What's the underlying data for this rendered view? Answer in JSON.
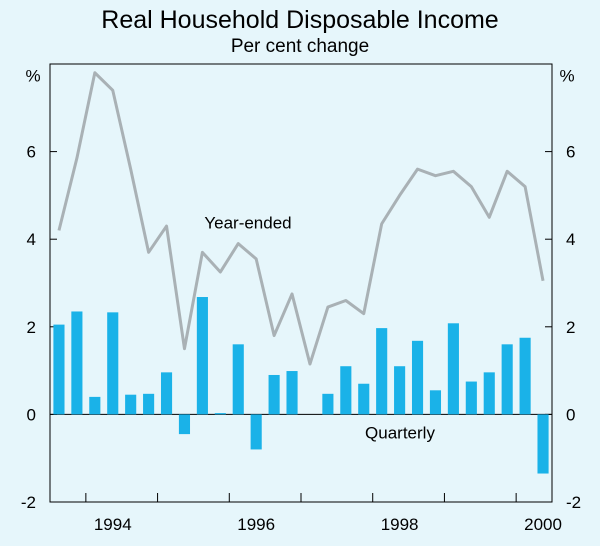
{
  "chart_data": {
    "type": "bar+line",
    "title": "Real Household Disposable Income",
    "subtitle": "Per cent change",
    "ylabel_left": "%",
    "ylabel_right": "%",
    "ylim": [
      -2,
      8
    ],
    "yticks": [
      -2,
      0,
      2,
      4,
      6
    ],
    "xtick_labels": [
      "1994",
      "1996",
      "1998",
      "2000"
    ],
    "xtick_positions": [
      3.5,
      11.5,
      19.5,
      27.5
    ],
    "annotations": {
      "line": "Year-ended",
      "bars": "Quarterly"
    },
    "colors": {
      "background": "#e6f6fb",
      "bars": "#1ab2e8",
      "line": "#a9b1b5",
      "axis": "#000000"
    },
    "series": [
      {
        "name": "Quarterly",
        "kind": "bar",
        "values": [
          2.05,
          2.35,
          0.4,
          2.33,
          0.45,
          0.47,
          0.96,
          -0.45,
          2.68,
          0.03,
          1.6,
          -0.8,
          0.9,
          0.99,
          null,
          0.47,
          1.1,
          0.7,
          1.97,
          1.1,
          1.68,
          0.55,
          2.08,
          0.75,
          0.96,
          1.6,
          1.75,
          -1.35
        ]
      },
      {
        "name": "Year-ended",
        "kind": "line",
        "values": [
          4.2,
          5.85,
          7.8,
          7.4,
          5.6,
          3.7,
          4.3,
          1.5,
          3.7,
          3.25,
          3.9,
          3.55,
          1.8,
          2.75,
          1.15,
          2.45,
          2.6,
          2.3,
          4.35,
          5.0,
          5.6,
          5.45,
          5.55,
          5.2,
          4.5,
          5.55,
          5.2,
          3.05
        ]
      }
    ]
  }
}
